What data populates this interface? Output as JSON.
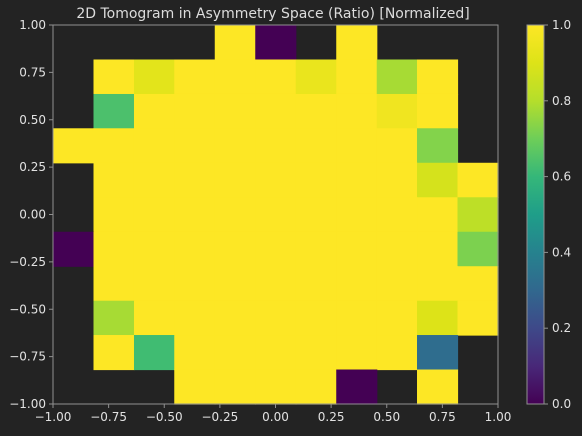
{
  "chart_data": {
    "type": "heatmap",
    "title": "2D Tomogram in Asymmetry Space (Ratio) [Normalized]",
    "xlabel": "",
    "ylabel": "",
    "xlim": [
      -1.0,
      1.0
    ],
    "ylim": [
      -1.0,
      1.0
    ],
    "grid": false,
    "x_ticks": [
      "−1.00",
      "−0.75",
      "−0.50",
      "−0.25",
      "0.00",
      "0.25",
      "0.50",
      "0.75",
      "1.00"
    ],
    "y_ticks": [
      "−1.00",
      "−0.75",
      "−0.50",
      "−0.25",
      "0.00",
      "0.25",
      "0.50",
      "0.75",
      "1.00"
    ],
    "x_edges": [
      -1.0,
      -0.818,
      -0.636,
      -0.455,
      -0.273,
      -0.091,
      0.091,
      0.273,
      0.455,
      0.636,
      0.818,
      1.0
    ],
    "y_edges": [
      -1.0,
      -0.818,
      -0.636,
      -0.455,
      -0.273,
      -0.091,
      0.091,
      0.273,
      0.455,
      0.636,
      0.818,
      1.0
    ],
    "note_rows": "values rows run from the top (y from 0.818 to 1.0) to the bottom (y from -1.0 to -0.818); null = empty bin",
    "values": [
      [
        null,
        null,
        null,
        null,
        1.0,
        0.0,
        null,
        1.0,
        null,
        null,
        null
      ],
      [
        null,
        1.0,
        0.92,
        1.0,
        1.0,
        1.0,
        0.94,
        1.0,
        0.78,
        1.0,
        null
      ],
      [
        null,
        0.64,
        1.0,
        1.0,
        1.0,
        1.0,
        1.0,
        1.0,
        0.96,
        1.0,
        null
      ],
      [
        1.0,
        1.0,
        1.0,
        1.0,
        1.0,
        1.0,
        1.0,
        1.0,
        1.0,
        0.73,
        null
      ],
      [
        null,
        1.0,
        1.0,
        1.0,
        1.0,
        1.0,
        1.0,
        1.0,
        1.0,
        0.88,
        1.0
      ],
      [
        null,
        1.0,
        1.0,
        1.0,
        1.0,
        1.0,
        1.0,
        1.0,
        1.0,
        1.0,
        0.82
      ],
      [
        0.0,
        1.0,
        1.0,
        1.0,
        1.0,
        1.0,
        1.0,
        1.0,
        1.0,
        1.0,
        0.72
      ],
      [
        null,
        1.0,
        1.0,
        1.0,
        1.0,
        1.0,
        1.0,
        1.0,
        1.0,
        1.0,
        1.0
      ],
      [
        null,
        0.78,
        1.0,
        1.0,
        1.0,
        1.0,
        1.0,
        1.0,
        1.0,
        0.9,
        1.0
      ],
      [
        null,
        1.0,
        0.62,
        1.0,
        1.0,
        1.0,
        1.0,
        1.0,
        1.0,
        0.32,
        null
      ],
      [
        null,
        null,
        null,
        1.0,
        1.0,
        1.0,
        1.0,
        0.0,
        null,
        1.0,
        null
      ]
    ],
    "colorbar": {
      "colormap": "viridis",
      "range": [
        0.0,
        1.0
      ],
      "ticks": [
        "0.0",
        "0.2",
        "0.4",
        "0.6",
        "0.8",
        "1.0"
      ]
    }
  },
  "colors": {
    "background": "#232323",
    "axes_face": "#232323",
    "spine": "#909090",
    "text": "#e2e2e2"
  }
}
